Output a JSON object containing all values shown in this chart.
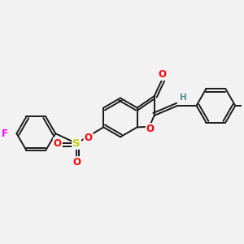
{
  "bg_color": "#f2f2f2",
  "bond_color": "#1a1a1a",
  "bond_width": 1.4,
  "atom_colors": {
    "O": "#ff0000",
    "S": "#cccc00",
    "F": "#ff00ff",
    "H": "#4a9090",
    "C": "#1a1a1a"
  },
  "font_size_atom": 8.5,
  "xlim": [
    -2.6,
    2.6
  ],
  "ylim": [
    -1.8,
    1.8
  ]
}
